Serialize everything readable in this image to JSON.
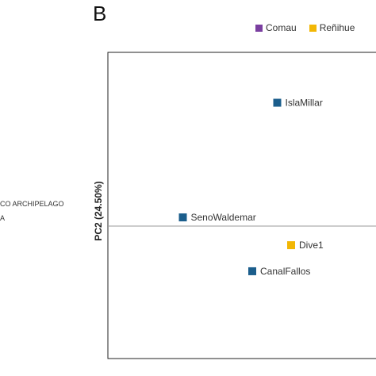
{
  "panel_letter": "B",
  "left_panel_fragment": {
    "line1": "CO ARCHIPELAGO",
    "line2": "A"
  },
  "chart_data": {
    "type": "scatter",
    "title": "",
    "xlabel": "",
    "ylabel": "PC2 (24.50%)",
    "xlim": [
      0,
      1
    ],
    "ylim": [
      -1,
      1
    ],
    "zero_line": "horizontal",
    "legend": {
      "placement": "top-right",
      "entries": [
        {
          "name": "Comau",
          "color": "#7a3fa0"
        },
        {
          "name": "Reñihue",
          "color": "#f2b705"
        }
      ]
    },
    "points": [
      {
        "label": "IslaMillar",
        "x": 0.61,
        "y": 0.71,
        "color": "#1b5e8c"
      },
      {
        "label": "SenoWaldemar",
        "x": 0.27,
        "y": 0.05,
        "color": "#1b5e8c"
      },
      {
        "label": "Dive1",
        "x": 0.66,
        "y": -0.11,
        "color": "#f2b705"
      },
      {
        "label": "CanalFallos",
        "x": 0.52,
        "y": -0.26,
        "color": "#1b5e8c"
      }
    ]
  }
}
